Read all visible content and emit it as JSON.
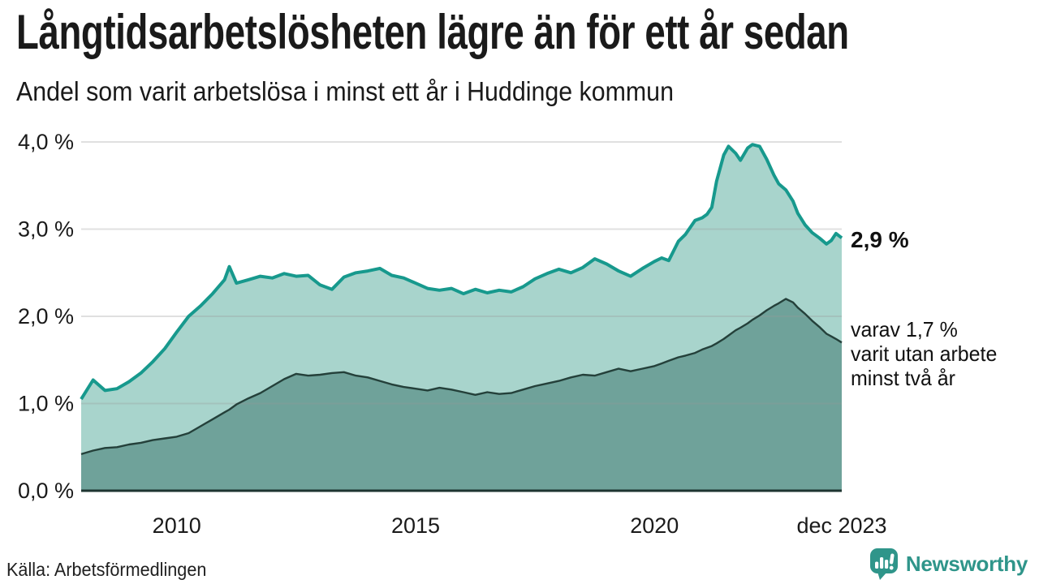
{
  "chart_data": {
    "type": "area",
    "title": "Långtidsarbetslösheten lägre än för ett år sedan",
    "subtitle": "Andel som varit arbetslösa i minst ett år i Huddinge kommun",
    "ylim": [
      0,
      4
    ],
    "x_range": [
      2008.0,
      2023.92
    ],
    "grid": "horizontal",
    "legend": "none",
    "y_ticks": [
      {
        "label": "4,0 %",
        "value": 4
      },
      {
        "label": "3,0 %",
        "value": 3
      },
      {
        "label": "2,0 %",
        "value": 2
      },
      {
        "label": "1,0 %",
        "value": 1
      },
      {
        "label": "0,0 %",
        "value": 0
      }
    ],
    "x_ticks": [
      {
        "label": "2010",
        "value": 2010
      },
      {
        "label": "2015",
        "value": 2015
      },
      {
        "label": "2020",
        "value": 2020
      },
      {
        "label": "dec 2023",
        "value": 2023.92
      }
    ],
    "x": [
      2008.0,
      2008.25,
      2008.5,
      2008.75,
      2009.0,
      2009.25,
      2009.5,
      2009.75,
      2010.0,
      2010.25,
      2010.5,
      2010.75,
      2011.0,
      2011.1,
      2011.25,
      2011.5,
      2011.75,
      2012.0,
      2012.25,
      2012.5,
      2012.75,
      2013.0,
      2013.25,
      2013.5,
      2013.75,
      2014.0,
      2014.25,
      2014.5,
      2014.75,
      2015.0,
      2015.25,
      2015.5,
      2015.75,
      2016.0,
      2016.25,
      2016.5,
      2016.75,
      2017.0,
      2017.25,
      2017.5,
      2017.75,
      2018.0,
      2018.25,
      2018.5,
      2018.75,
      2019.0,
      2019.25,
      2019.5,
      2019.75,
      2020.0,
      2020.15,
      2020.3,
      2020.5,
      2020.65,
      2020.85,
      2021.0,
      2021.1,
      2021.2,
      2021.3,
      2021.45,
      2021.55,
      2021.7,
      2021.8,
      2021.95,
      2022.05,
      2022.2,
      2022.35,
      2022.5,
      2022.6,
      2022.75,
      2022.9,
      2023.0,
      2023.15,
      2023.3,
      2023.45,
      2023.6,
      2023.7,
      2023.8,
      2023.92
    ],
    "series": [
      {
        "name": "arbetslösa minst ett år",
        "line_color": "#17998d",
        "fill_color": "#a8d4cc",
        "end_value": "2,9 %",
        "values": [
          1.05,
          1.27,
          1.15,
          1.17,
          1.25,
          1.35,
          1.48,
          1.63,
          1.82,
          2.0,
          2.12,
          2.26,
          2.42,
          2.57,
          2.38,
          2.42,
          2.46,
          2.44,
          2.49,
          2.46,
          2.47,
          2.36,
          2.31,
          2.45,
          2.5,
          2.52,
          2.55,
          2.47,
          2.44,
          2.38,
          2.32,
          2.3,
          2.32,
          2.26,
          2.31,
          2.27,
          2.3,
          2.28,
          2.34,
          2.43,
          2.49,
          2.54,
          2.5,
          2.56,
          2.66,
          2.6,
          2.52,
          2.46,
          2.55,
          2.63,
          2.67,
          2.64,
          2.86,
          2.94,
          3.1,
          3.13,
          3.17,
          3.25,
          3.55,
          3.85,
          3.95,
          3.87,
          3.79,
          3.93,
          3.97,
          3.95,
          3.8,
          3.62,
          3.52,
          3.45,
          3.32,
          3.18,
          3.05,
          2.96,
          2.9,
          2.83,
          2.87,
          2.95,
          2.9
        ]
      },
      {
        "name": "varav utan arbete minst två år",
        "line_color": "#24403a",
        "fill_color": "#6fa29a",
        "end_value": "1,7 %",
        "values": [
          0.42,
          0.46,
          0.49,
          0.5,
          0.53,
          0.55,
          0.58,
          0.6,
          0.62,
          0.66,
          0.74,
          0.82,
          0.9,
          0.93,
          0.99,
          1.06,
          1.12,
          1.2,
          1.28,
          1.34,
          1.32,
          1.33,
          1.35,
          1.36,
          1.32,
          1.3,
          1.26,
          1.22,
          1.19,
          1.17,
          1.15,
          1.18,
          1.16,
          1.13,
          1.1,
          1.13,
          1.11,
          1.12,
          1.16,
          1.2,
          1.23,
          1.26,
          1.3,
          1.33,
          1.32,
          1.36,
          1.4,
          1.37,
          1.4,
          1.43,
          1.46,
          1.49,
          1.53,
          1.55,
          1.58,
          1.62,
          1.64,
          1.66,
          1.69,
          1.74,
          1.78,
          1.84,
          1.87,
          1.92,
          1.96,
          2.01,
          2.07,
          2.12,
          2.15,
          2.2,
          2.16,
          2.1,
          2.03,
          1.95,
          1.88,
          1.8,
          1.77,
          1.74,
          1.7
        ]
      }
    ],
    "annotations": {
      "one_year_end_label": "2,9 %",
      "two_year_end_label": "varav 1,7 %\nvarit utan arbete\nminst två år"
    }
  },
  "footer": {
    "source": "Källa: Arbetsförmedlingen",
    "brand": "Newsworthy"
  },
  "colors": {
    "accent_line": "#17998d",
    "light_fill": "#a8d4cc",
    "dark_fill": "#6fa29a",
    "dark_line": "#24403a",
    "axis_line": "#1e3531",
    "grid": "#999999",
    "text": "#1a1a1a",
    "brand_teal": "#2f958a"
  }
}
